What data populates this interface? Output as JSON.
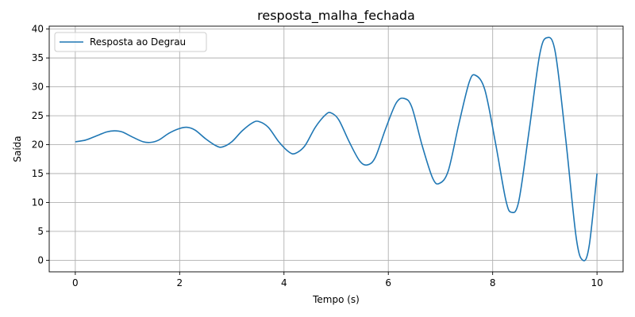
{
  "chart_data": {
    "type": "line",
    "title": "resposta_malha_fechada",
    "xlabel": "Tempo (s)",
    "ylabel": "Saída",
    "xlim": [
      -0.5,
      10.5
    ],
    "ylim": [
      -2,
      40.5
    ],
    "xticks": [
      0,
      2,
      4,
      6,
      8,
      10
    ],
    "yticks": [
      0,
      5,
      10,
      15,
      20,
      25,
      30,
      35,
      40
    ],
    "grid": true,
    "legend_position": "upper-left",
    "series": [
      {
        "name": "Resposta ao Degrau",
        "color": "#1f77b4",
        "x": [
          0,
          0.2,
          0.4,
          0.6,
          0.75,
          0.9,
          1.1,
          1.3,
          1.45,
          1.6,
          1.8,
          2.0,
          2.15,
          2.3,
          2.5,
          2.7,
          2.82,
          3.0,
          3.2,
          3.4,
          3.52,
          3.7,
          3.9,
          4.1,
          4.22,
          4.4,
          4.6,
          4.8,
          4.9,
          5.05,
          5.25,
          5.45,
          5.6,
          5.75,
          5.95,
          6.15,
          6.3,
          6.45,
          6.65,
          6.85,
          6.98,
          7.15,
          7.35,
          7.55,
          7.67,
          7.85,
          8.05,
          8.25,
          8.36,
          8.5,
          8.7,
          8.9,
          9.04,
          9.2,
          9.4,
          9.6,
          9.73,
          9.85,
          10.0
        ],
        "y": [
          20.5,
          20.8,
          21.5,
          22.2,
          22.4,
          22.2,
          21.3,
          20.5,
          20.4,
          20.8,
          22.0,
          22.8,
          23.0,
          22.5,
          21.0,
          19.8,
          19.6,
          20.5,
          22.4,
          23.8,
          24.0,
          23.0,
          20.5,
          18.7,
          18.5,
          19.8,
          23.0,
          25.2,
          25.5,
          24.3,
          20.5,
          17.2,
          16.5,
          17.8,
          22.8,
          27.2,
          28.0,
          26.5,
          19.8,
          14.2,
          13.3,
          15.5,
          23.5,
          30.8,
          32.0,
          29.5,
          20.5,
          10.5,
          8.3,
          10.2,
          22.5,
          35.5,
          38.5,
          36.0,
          21.0,
          4.0,
          0.0,
          2.5,
          15.0
        ]
      }
    ]
  }
}
